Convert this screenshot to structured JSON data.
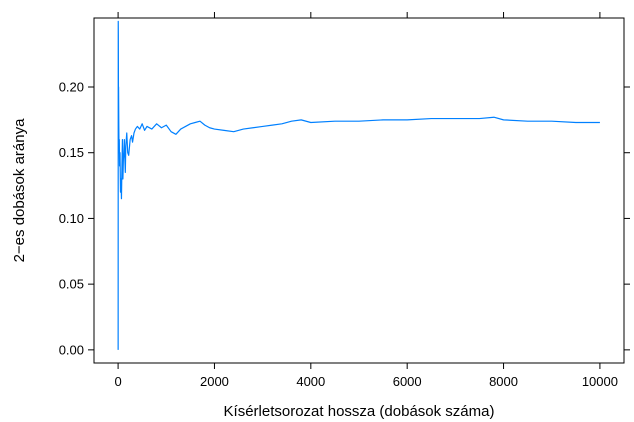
{
  "chart_data": {
    "type": "line",
    "title": "",
    "xlabel": "Kísérletsorozat hossza (dobások száma)",
    "ylabel": "2−es dobások aránya",
    "xlim": [
      -500,
      10500
    ],
    "ylim": [
      -0.01,
      0.2525
    ],
    "x_ticks": [
      0,
      2000,
      4000,
      6000,
      8000,
      10000
    ],
    "x_tick_labels": [
      "0",
      "2000",
      "4000",
      "6000",
      "8000",
      "10000"
    ],
    "y_ticks": [
      0.0,
      0.05,
      0.1,
      0.15,
      0.2
    ],
    "y_tick_labels": [
      "0.00",
      "0.05",
      "0.10",
      "0.15",
      "0.20"
    ],
    "grid": false,
    "legend": "none",
    "series": [
      {
        "color": "#0080ff",
        "x": [
          1,
          3,
          5,
          8,
          10,
          15,
          20,
          25,
          30,
          40,
          50,
          60,
          70,
          80,
          90,
          100,
          110,
          120,
          130,
          140,
          150,
          160,
          170,
          180,
          200,
          220,
          250,
          280,
          300,
          330,
          360,
          400,
          450,
          500,
          550,
          600,
          700,
          800,
          900,
          1000,
          1100,
          1200,
          1300,
          1400,
          1500,
          1600,
          1700,
          1800,
          1900,
          2000,
          2200,
          2400,
          2600,
          2800,
          3000,
          3200,
          3400,
          3600,
          3800,
          4000,
          4500,
          5000,
          5500,
          6000,
          6500,
          7000,
          7500,
          7800,
          8000,
          8500,
          9000,
          9500,
          10000
        ],
        "y": [
          0.0,
          0.25,
          0.24,
          0.18,
          0.2,
          0.17,
          0.15,
          0.16,
          0.14,
          0.15,
          0.12,
          0.13,
          0.115,
          0.14,
          0.16,
          0.13,
          0.145,
          0.15,
          0.16,
          0.145,
          0.135,
          0.155,
          0.16,
          0.165,
          0.15,
          0.148,
          0.16,
          0.163,
          0.158,
          0.165,
          0.168,
          0.17,
          0.168,
          0.172,
          0.167,
          0.17,
          0.168,
          0.172,
          0.169,
          0.171,
          0.166,
          0.164,
          0.168,
          0.17,
          0.172,
          0.173,
          0.174,
          0.171,
          0.169,
          0.168,
          0.167,
          0.166,
          0.168,
          0.169,
          0.17,
          0.171,
          0.172,
          0.174,
          0.175,
          0.173,
          0.174,
          0.174,
          0.175,
          0.175,
          0.176,
          0.176,
          0.176,
          0.177,
          0.175,
          0.174,
          0.174,
          0.173,
          0.173
        ]
      }
    ]
  }
}
